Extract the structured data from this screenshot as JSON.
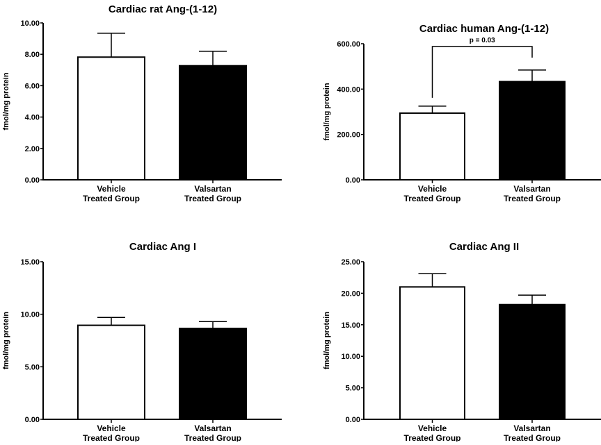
{
  "chart_data": [
    {
      "type": "bar",
      "title": "Cardiac  rat Ang-(1-12)",
      "ylabel": "fmol/mg protein",
      "xlabel": "",
      "categories": [
        [
          "Vehicle",
          "Treated Group"
        ],
        [
          "Valsartan",
          "Treated Group"
        ]
      ],
      "values": [
        7.82,
        7.27
      ],
      "errors_upper": [
        9.34,
        8.19
      ],
      "fills": [
        "#ffffff",
        "#000000"
      ],
      "ylim": [
        0,
        10
      ],
      "yticks": [
        "0.00",
        "2.00",
        "4.00",
        "6.00",
        "8.00",
        "10.00"
      ],
      "ytick_values": [
        0,
        2,
        4,
        6,
        8,
        10
      ],
      "grid": false
    },
    {
      "type": "bar",
      "title": "Cardiac human Ang-(1-12)",
      "ylabel": "fmol/mg protein",
      "xlabel": "",
      "categories": [
        [
          "Vehicle",
          "Treated Group"
        ],
        [
          "Valsartan",
          "Treated Group"
        ]
      ],
      "values": [
        294,
        433
      ],
      "errors_upper": [
        325,
        484
      ],
      "fills": [
        "#ffffff",
        "#000000"
      ],
      "ylim": [
        0,
        600
      ],
      "yticks": [
        "0.00",
        "200.00",
        "400.00",
        "600.00"
      ],
      "ytick_values": [
        0,
        200,
        400,
        600
      ],
      "grid": false,
      "annotation": {
        "text": "p = 0.03",
        "between": [
          0,
          1
        ],
        "y": 600
      }
    },
    {
      "type": "bar",
      "title": "Cardiac Ang I",
      "ylabel": "fmol/mg protein",
      "xlabel": "",
      "categories": [
        [
          "Vehicle",
          "Treated Group"
        ],
        [
          "Valsartan",
          "Treated Group"
        ]
      ],
      "values": [
        8.95,
        8.65
      ],
      "errors_upper": [
        9.7,
        9.3
      ],
      "fills": [
        "#ffffff",
        "#000000"
      ],
      "ylim": [
        0,
        15
      ],
      "yticks": [
        "0.00",
        "5.00",
        "10.00",
        "15.00"
      ],
      "ytick_values": [
        0,
        5,
        10,
        15
      ],
      "grid": false
    },
    {
      "type": "bar",
      "title": "Cardiac Ang II",
      "ylabel": "fmol/mg protein",
      "xlabel": "",
      "categories": [
        [
          "Vehicle",
          "Treated Group"
        ],
        [
          "Valsartan",
          "Treated Group"
        ]
      ],
      "values": [
        21.0,
        18.2
      ],
      "errors_upper": [
        23.1,
        19.7
      ],
      "fills": [
        "#ffffff",
        "#000000"
      ],
      "ylim": [
        0,
        25
      ],
      "yticks": [
        "0.00",
        "5.00",
        "10.00",
        "15.00",
        "20.00",
        "25.00"
      ],
      "ytick_values": [
        0,
        5,
        10,
        15,
        20,
        25
      ],
      "grid": false
    }
  ]
}
